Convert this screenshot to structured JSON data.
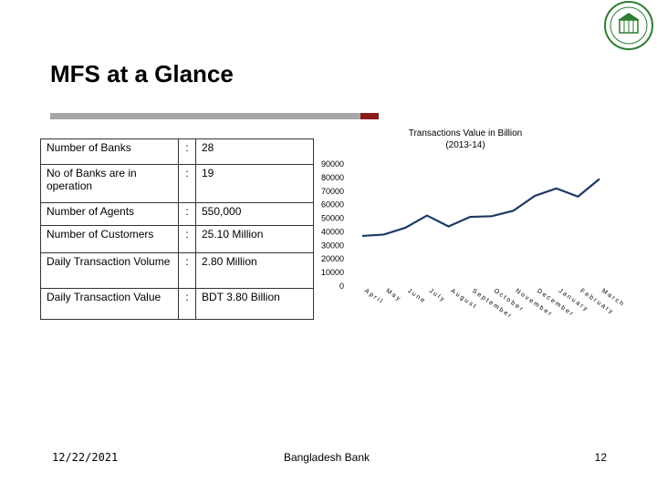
{
  "title": "MFS at a Glance",
  "table": {
    "rows": [
      [
        "Number of Banks",
        ":",
        "28"
      ],
      [
        "No of Banks are in operation",
        ":",
        "19"
      ],
      [
        "Number of Agents",
        ":",
        "550,000"
      ],
      [
        "Number of Customers",
        ":",
        "25.10 Million"
      ],
      [
        "Daily Transaction Volume",
        ":",
        "2.80 Million"
      ],
      [
        "Daily Transaction Value",
        ":",
        "BDT 3.80 Billion"
      ]
    ]
  },
  "chart_data": {
    "type": "line",
    "title": "Transactions Value in Billion (2013-14)",
    "categories": [
      "April",
      "May",
      "June",
      "July",
      "August",
      "September",
      "October",
      "November",
      "December",
      "January",
      "February",
      "March"
    ],
    "series": [
      {
        "name": "Transactions Value",
        "color": "#1f3864",
        "values": [
          37000,
          38000,
          43000,
          52000,
          44000,
          51000,
          51500,
          55500,
          66500,
          72000,
          66000,
          79000
        ]
      }
    ],
    "ylim": [
      0,
      90000
    ],
    "yticks": [
      0,
      10000,
      20000,
      30000,
      40000,
      50000,
      60000,
      70000,
      80000,
      90000
    ]
  },
  "footer": {
    "date": "12/22/2021",
    "organization": "Bangladesh Bank",
    "page": "12"
  }
}
